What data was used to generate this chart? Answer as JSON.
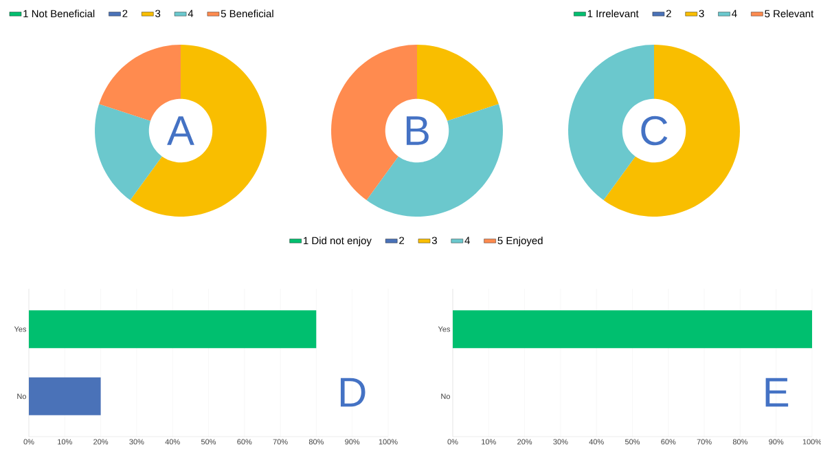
{
  "chart_data": [
    {
      "type": "donut",
      "categories": [
        "1 Not Beneficial",
        "2",
        "3",
        "4",
        "5 Beneficial"
      ],
      "values": [
        0,
        0,
        60,
        20,
        20
      ],
      "colors": [
        "#00bf6f",
        "#4a72b8",
        "#f9be00",
        "#6bc8cd",
        "#ff8b4f"
      ],
      "legend": "top left",
      "annotations": [
        "A"
      ]
    },
    {
      "type": "donut",
      "categories": [
        "1 Did not enjoy",
        "2",
        "3",
        "4",
        "5 Enjoyed"
      ],
      "values": [
        0,
        0,
        20,
        40,
        40
      ],
      "colors": [
        "#00bf6f",
        "#4a72b8",
        "#f9be00",
        "#6bc8cd",
        "#ff8b4f"
      ],
      "legend": "bottom",
      "annotations": [
        "B"
      ]
    },
    {
      "type": "donut",
      "categories": [
        "1 Irrelevant",
        "2",
        "3",
        "4",
        "5 Relevant"
      ],
      "values": [
        0,
        0,
        60,
        40,
        0
      ],
      "colors": [
        "#00bf6f",
        "#4a72b8",
        "#f9be00",
        "#6bc8cd",
        "#ff8b4f"
      ],
      "legend": "top right",
      "annotations": [
        "C"
      ]
    },
    {
      "type": "bar",
      "orientation": "horizontal",
      "categories": [
        "Yes",
        "No"
      ],
      "values": [
        80,
        20
      ],
      "colors": [
        "#00bf6f",
        "#4a72b8"
      ],
      "xlim": [
        0,
        100
      ],
      "xticks": [
        {
          "value": 0,
          "label": "0%"
        },
        {
          "value": 10,
          "label": "10%"
        },
        {
          "value": 20,
          "label": "20%"
        },
        {
          "value": 30,
          "label": "30%"
        },
        {
          "value": 40,
          "label": "40%"
        },
        {
          "value": 50,
          "label": "50%"
        },
        {
          "value": 60,
          "label": "60%"
        },
        {
          "value": 70,
          "label": "70%"
        },
        {
          "value": 80,
          "label": "80%"
        },
        {
          "value": 90,
          "label": "90%"
        },
        {
          "value": 100,
          "label": "100%"
        }
      ],
      "grid": "x",
      "annotations": [
        "D"
      ]
    },
    {
      "type": "bar",
      "orientation": "horizontal",
      "categories": [
        "Yes",
        "No"
      ],
      "values": [
        100,
        0
      ],
      "colors": [
        "#00bf6f",
        "#4a72b8"
      ],
      "xlim": [
        0,
        100
      ],
      "xticks": [
        {
          "value": 0,
          "label": "0%"
        },
        {
          "value": 10,
          "label": "10%"
        },
        {
          "value": 20,
          "label": "20%"
        },
        {
          "value": 30,
          "label": "30%"
        },
        {
          "value": 40,
          "label": "40%"
        },
        {
          "value": 50,
          "label": "50%"
        },
        {
          "value": 60,
          "label": "60%"
        },
        {
          "value": 70,
          "label": "70%"
        },
        {
          "value": 80,
          "label": "80%"
        },
        {
          "value": 90,
          "label": "90%"
        },
        {
          "value": 100,
          "label": "100%"
        }
      ],
      "grid": "x",
      "annotations": [
        "E"
      ]
    }
  ]
}
